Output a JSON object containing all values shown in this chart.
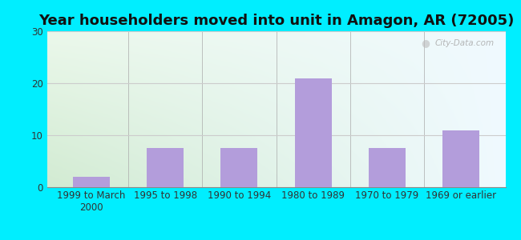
{
  "title": "Year householders moved into unit in Amagon, AR (72005)",
  "categories": [
    "1999 to March\n2000",
    "1995 to 1998",
    "1990 to 1994",
    "1980 to 1989",
    "1970 to 1979",
    "1969 or earlier"
  ],
  "values": [
    2,
    7.5,
    7.5,
    21,
    7.5,
    11
  ],
  "bar_color": "#b39ddb",
  "background_outer": "#00eeff",
  "ylim": [
    0,
    30
  ],
  "yticks": [
    0,
    10,
    20,
    30
  ],
  "title_fontsize": 13,
  "tick_fontsize": 8.5,
  "watermark": "City-Data.com",
  "grid_color": "#cccccc",
  "bg_topleft": "#d8f0d8",
  "bg_topright": "#f0f8ff",
  "bg_bottom": "#d4ecd4"
}
